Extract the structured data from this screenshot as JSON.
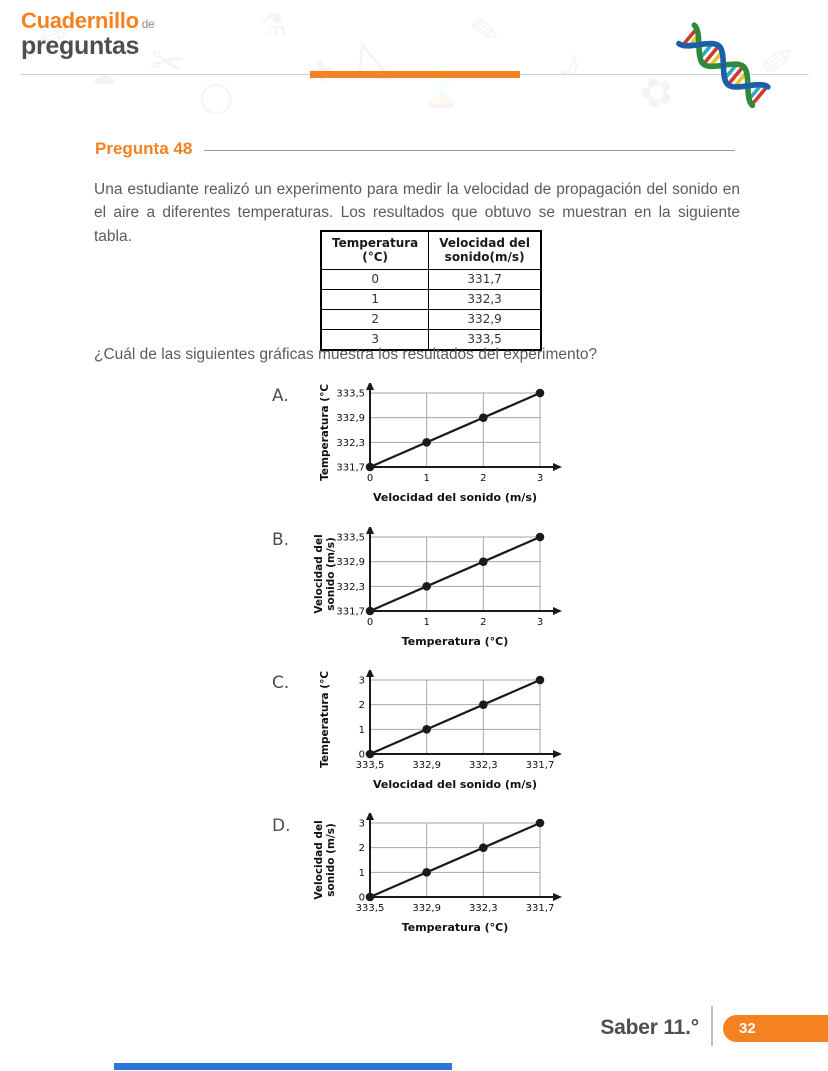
{
  "colors": {
    "accent_orange": "#F58220",
    "dark_gray": "#4D4E50",
    "body_gray": "#5A5B5E",
    "blue_bar": "#2E74D9",
    "dna_blue": "#1B5FA8",
    "dna_green": "#2E8B3A",
    "dna_rungs": [
      "#CE3B2C",
      "#E8C32A",
      "#2AA9C9"
    ]
  },
  "header": {
    "logo_title": "Cuadernillo",
    "logo_connector": "de",
    "logo_subtitle": "preguntas",
    "decor_glyphs": [
      "✏",
      "✂",
      "⚗",
      "◺",
      "✎",
      "♪",
      "✿",
      "◯",
      "⌛",
      "✐",
      "☁",
      "✚"
    ]
  },
  "question": {
    "number_label": "Pregunta 48",
    "intro": "Una estudiante realizó un experimento para medir la velocidad de propagación del sonido en el aire a diferentes temperaturas. Los resultados que obtuvo se muestran en la siguiente tabla.",
    "prompt": "¿Cuál de las siguientes gráficas muestra los resultados del experimento?"
  },
  "table": {
    "headers": [
      [
        "Temperatura",
        "(°C)"
      ],
      [
        "Velocidad del",
        "sonido(m/s)"
      ]
    ],
    "rows": [
      [
        "0",
        "331,7"
      ],
      [
        "1",
        "332,3"
      ],
      [
        "2",
        "332,9"
      ],
      [
        "3",
        "333,5"
      ]
    ]
  },
  "chart_data": [
    {
      "option": "A.",
      "type": "line",
      "x_ticks": [
        "0",
        "1",
        "2",
        "3"
      ],
      "y_ticks_bottom_to_top": [
        "331,7",
        "332,3",
        "332,9",
        "333,5"
      ],
      "xlabel": "Velocidad del sonido (m/s)",
      "ylabel_lines": [
        "Temperatura (°C)"
      ],
      "points": [
        [
          0,
          331.7
        ],
        [
          1,
          332.3
        ],
        [
          2,
          332.9
        ],
        [
          3,
          333.5
        ]
      ],
      "grid": true,
      "marker": "filled-circle"
    },
    {
      "option": "B.",
      "type": "line",
      "x_ticks": [
        "0",
        "1",
        "2",
        "3"
      ],
      "y_ticks_bottom_to_top": [
        "331,7",
        "332,3",
        "332,9",
        "333,5"
      ],
      "xlabel": "Temperatura (°C)",
      "ylabel_lines": [
        "Velocidad del",
        "sonido (m/s)"
      ],
      "points": [
        [
          0,
          331.7
        ],
        [
          1,
          332.3
        ],
        [
          2,
          332.9
        ],
        [
          3,
          333.5
        ]
      ],
      "grid": true,
      "marker": "filled-circle"
    },
    {
      "option": "C.",
      "type": "line",
      "x_ticks": [
        "333,5",
        "332,9",
        "332,3",
        "331,7"
      ],
      "y_ticks_bottom_to_top": [
        "0",
        "1",
        "2",
        "3"
      ],
      "xlabel": "Velocidad del sonido (m/s)",
      "ylabel_lines": [
        "Temperatura (°C)"
      ],
      "points": [
        [
          333.5,
          0
        ],
        [
          332.9,
          1
        ],
        [
          332.3,
          2
        ],
        [
          331.7,
          3
        ]
      ],
      "grid": true,
      "marker": "filled-circle"
    },
    {
      "option": "D.",
      "type": "line",
      "x_ticks": [
        "333,5",
        "332,9",
        "332,3",
        "331,7"
      ],
      "y_ticks_bottom_to_top": [
        "0",
        "1",
        "2",
        "3"
      ],
      "xlabel": "Temperatura (°C)",
      "ylabel_lines": [
        "Velocidad del",
        "sonido (m/s)"
      ],
      "points": [
        [
          333.5,
          0
        ],
        [
          332.9,
          1
        ],
        [
          332.3,
          2
        ],
        [
          331.7,
          3
        ]
      ],
      "grid": true,
      "marker": "filled-circle"
    }
  ],
  "footer": {
    "exam_label": "Saber 11.°",
    "page_number": "32"
  }
}
